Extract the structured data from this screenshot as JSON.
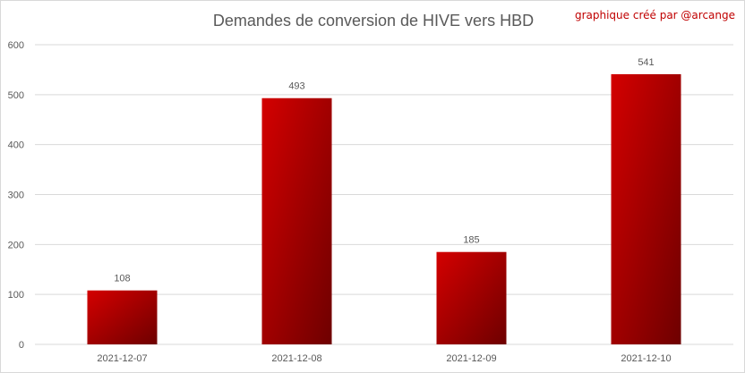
{
  "chart_data": {
    "type": "bar",
    "title": "Demandes de conversion de HIVE vers HBD",
    "credit": "graphique créé par @arcange",
    "categories": [
      "2021-12-07",
      "2021-12-08",
      "2021-12-09",
      "2021-12-10"
    ],
    "values": [
      108,
      493,
      185,
      541
    ],
    "data_labels": [
      "108",
      "493",
      "185",
      "541"
    ],
    "y_ticks": [
      "0",
      "100",
      "200",
      "300",
      "400",
      "500",
      "600"
    ],
    "ylim": [
      0,
      600
    ],
    "grid": true,
    "legend": "none",
    "colors": {
      "bar_light": "#d40000",
      "bar_dark": "#6e0000",
      "grid": "#d9d9d9",
      "text": "#595959",
      "credit": "#c00000"
    }
  }
}
